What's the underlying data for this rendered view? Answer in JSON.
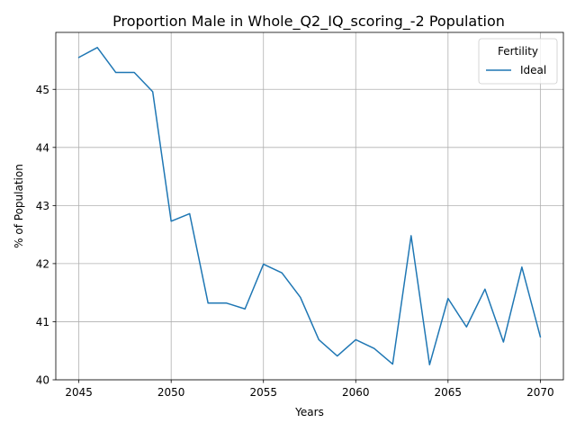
{
  "chart_data": {
    "type": "line",
    "title": "Proportion Male in Whole_Q2_IQ_scoring_-2 Population",
    "xlabel": "Years",
    "ylabel": "% of Population",
    "xlim": [
      2043.75,
      2071.25
    ],
    "ylim": [
      40.0,
      45.98
    ],
    "x_ticks": [
      2045,
      2050,
      2055,
      2060,
      2065,
      2070
    ],
    "y_ticks": [
      40,
      41,
      42,
      43,
      44,
      45
    ],
    "grid": true,
    "legend": {
      "title": "Fertility",
      "position": "top-right"
    },
    "series": [
      {
        "name": "Ideal",
        "color": "#1f77b4",
        "x": [
          2045,
          2046,
          2047,
          2048,
          2049,
          2050,
          2051,
          2052,
          2053,
          2054,
          2055,
          2056,
          2057,
          2058,
          2059,
          2060,
          2061,
          2062,
          2063,
          2064,
          2065,
          2066,
          2067,
          2068,
          2069,
          2070
        ],
        "y": [
          45.55,
          45.72,
          45.29,
          45.29,
          44.96,
          42.73,
          42.86,
          41.32,
          41.32,
          41.22,
          41.99,
          41.84,
          41.42,
          40.69,
          40.41,
          40.69,
          40.54,
          40.27,
          42.48,
          40.26,
          41.4,
          40.91,
          41.56,
          40.65,
          41.94,
          40.74
        ]
      }
    ]
  }
}
